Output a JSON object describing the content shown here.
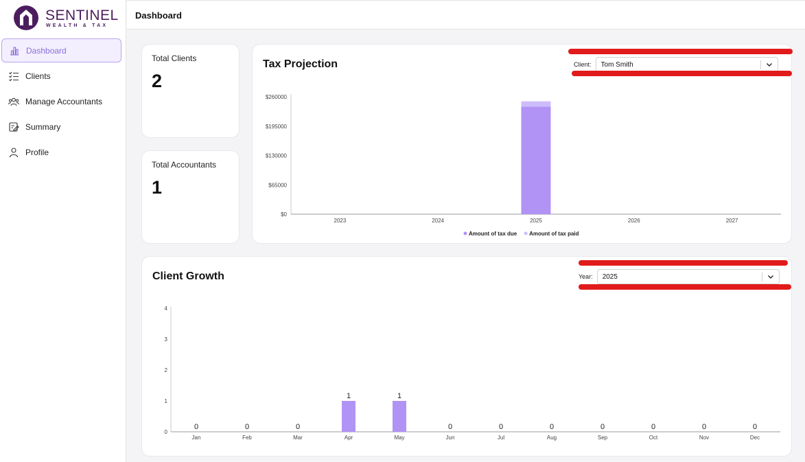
{
  "brand": {
    "name": "SENTINEL",
    "tagline": "WEALTH & TAX",
    "color": "#4b1d5e"
  },
  "sidebar": {
    "items": [
      {
        "label": "Dashboard",
        "icon": "bar-chart-icon",
        "active": true
      },
      {
        "label": "Clients",
        "icon": "checklist-icon",
        "active": false
      },
      {
        "label": "Manage Accountants",
        "icon": "users-icon",
        "active": false
      },
      {
        "label": "Summary",
        "icon": "edit-doc-icon",
        "active": false
      },
      {
        "label": "Profile",
        "icon": "user-icon",
        "active": false
      }
    ]
  },
  "header": {
    "title": "Dashboard"
  },
  "stats": {
    "total_clients": {
      "label": "Total Clients",
      "value": "2"
    },
    "total_accountants": {
      "label": "Total Accountants",
      "value": "1"
    }
  },
  "tax_projection": {
    "title": "Tax Projection",
    "filter": {
      "label": "Client:",
      "value": "Tom Smith"
    }
  },
  "client_growth": {
    "title": "Client Growth",
    "filter": {
      "label": "Year:",
      "value": "2025"
    }
  },
  "colors": {
    "accent": "#b093f5",
    "accent_light": "#cdbcfa",
    "active_bg": "#f3efff",
    "redaction": "#e11b1b"
  },
  "chart_data": [
    {
      "type": "bar",
      "stacked": true,
      "categories": [
        "2023",
        "2024",
        "2025",
        "2026",
        "2027"
      ],
      "series": [
        {
          "name": "Amount of tax due",
          "color": "#b093f5",
          "values": [
            0,
            0,
            238000,
            0,
            0
          ]
        },
        {
          "name": "Amount of tax paid",
          "color": "#cdbcfa",
          "values": [
            0,
            0,
            12000,
            0,
            0
          ]
        }
      ],
      "yticks": [
        "$0",
        "$65000",
        "$130000",
        "$195000",
        "$260000"
      ],
      "ylim": [
        0,
        260000
      ],
      "legend": "bottom"
    },
    {
      "type": "bar",
      "categories": [
        "Jan",
        "Feb",
        "Mar",
        "Apr",
        "May",
        "Jun",
        "Jul",
        "Aug",
        "Sep",
        "Oct",
        "Nov",
        "Dec"
      ],
      "values": [
        0,
        0,
        0,
        1,
        1,
        0,
        0,
        0,
        0,
        0,
        0,
        0
      ],
      "yticks": [
        "0",
        "1",
        "2",
        "3",
        "4"
      ],
      "ylim": [
        0,
        4
      ],
      "data_labels": true,
      "color": "#b093f5"
    }
  ]
}
